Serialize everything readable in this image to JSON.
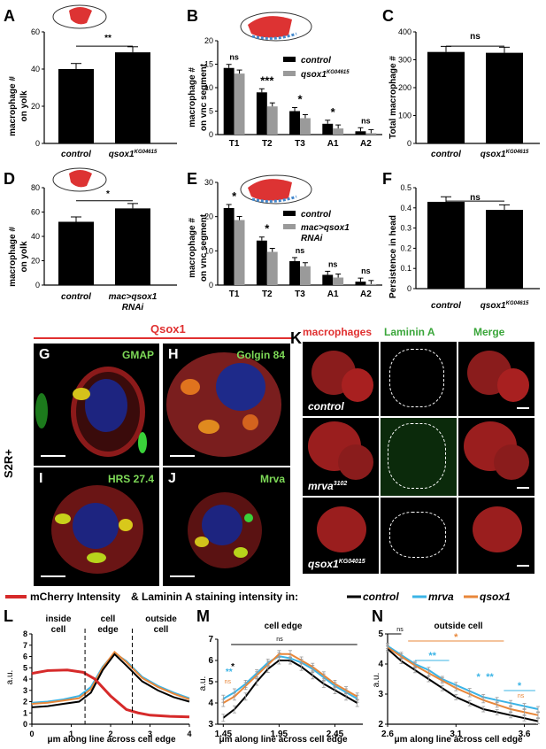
{
  "panels": {
    "A": {
      "label": "A",
      "ylabel1": "macrophage #",
      "ylabel2": "on yolk",
      "sig": "**"
    },
    "B": {
      "label": "B",
      "ylabel1": "macrophage #",
      "ylabel2": "on vnc segment",
      "sigs": [
        "ns",
        "***",
        "*",
        "*",
        "ns"
      ]
    },
    "C": {
      "label": "C",
      "ylabel": "Total macrophage #",
      "sig": "ns"
    },
    "D": {
      "label": "D",
      "ylabel1": "macrophage #",
      "ylabel2": "on yolk",
      "sig": "*"
    },
    "E": {
      "label": "E",
      "ylabel1": "macrophage #",
      "ylabel2": "on vnc segment",
      "sigs": [
        "*",
        "*",
        "ns",
        "ns",
        "ns"
      ]
    },
    "F": {
      "label": "F",
      "ylabel": "Persistence in head",
      "sig": "ns"
    },
    "G": {
      "label": "G",
      "stain": "GMAP"
    },
    "H": {
      "label": "H",
      "stain": "Golgin 84"
    },
    "I": {
      "label": "I",
      "stain": "HRS 27.4"
    },
    "J": {
      "label": "J",
      "stain": "Mrva"
    },
    "K": {
      "label": "K",
      "col1": "macrophages",
      "col2": "Laminin A",
      "col3": "Merge",
      "row1": "control",
      "row2": "mrva",
      "row2sup": "3102",
      "row3": "qsox1",
      "row3sup": "KG04015"
    },
    "L": {
      "label": "L",
      "xlabel": "μm along line across cell edge",
      "ylabel": "a.u.",
      "region1": "inside",
      "region1b": "cell",
      "region2": "cell",
      "region2b": "edge",
      "region3": "outside",
      "region3b": "cell"
    },
    "M": {
      "label": "M",
      "title": "cell edge",
      "xlabel": "μm along line across cell edge",
      "ylabel": "a.u.",
      "sig": "ns"
    },
    "N": {
      "label": "N",
      "title": "outside cell",
      "xlabel": "μm along line across cell edge",
      "ylabel": "a.u.",
      "sig": "ns"
    }
  },
  "labels": {
    "control": "control",
    "qsox": "qsox1",
    "qsox_sup": "KG04615",
    "mac": "mac>qsox1",
    "rnai": "RNAi",
    "qsox1_header": "Qsox1",
    "s2r": "S2R+",
    "legend_mcherry": "mCherry Intensity",
    "legend_amp": "& Laminin A staining intensity in:",
    "legend_control": "control",
    "legend_mrva": "mrva",
    "legend_qsox1": "qsox1"
  },
  "colors": {
    "control": "#000000",
    "mrva": "#3bb4e6",
    "qsox1": "#e8873a",
    "mcherry": "#d62a2a",
    "gray": "#9a9a9a"
  },
  "chart_data": [
    {
      "type": "bar",
      "panel": "A",
      "categories": [
        "control",
        "qsox1 KG04615"
      ],
      "values": [
        40,
        49
      ],
      "ylim": [
        0,
        60
      ]
    },
    {
      "type": "bar",
      "panel": "B",
      "categories": [
        "T1",
        "T2",
        "T3",
        "A1",
        "A2"
      ],
      "series": [
        {
          "name": "control",
          "values": [
            14.2,
            9,
            5,
            2.3,
            0.7
          ]
        },
        {
          "name": "qsox1 KG04615",
          "values": [
            13,
            6,
            3.5,
            1.3,
            0.3
          ]
        }
      ],
      "ylim": [
        0,
        20
      ]
    },
    {
      "type": "bar",
      "panel": "C",
      "categories": [
        "control",
        "qsox1 KG04615"
      ],
      "values": [
        328,
        325
      ],
      "ylim": [
        0,
        400
      ]
    },
    {
      "type": "bar",
      "panel": "D",
      "categories": [
        "control",
        "mac>qsox1 RNAi"
      ],
      "values": [
        52,
        63
      ],
      "ylim": [
        0,
        80
      ]
    },
    {
      "type": "bar",
      "panel": "E",
      "categories": [
        "T1",
        "T2",
        "T3",
        "A1",
        "A2"
      ],
      "series": [
        {
          "name": "control",
          "values": [
            22.5,
            13,
            7,
            3,
            1
          ]
        },
        {
          "name": "mac>qsox1 RNAi",
          "values": [
            19,
            9.7,
            5.5,
            2.2,
            0.3
          ]
        }
      ],
      "ylim": [
        0,
        30
      ]
    },
    {
      "type": "bar",
      "panel": "F",
      "categories": [
        "control",
        "qsox1 KG04615"
      ],
      "values": [
        0.43,
        0.39
      ],
      "ylim": [
        0,
        0.5
      ]
    },
    {
      "type": "line",
      "panel": "L",
      "xlim": [
        0,
        4
      ],
      "ylim": [
        0,
        8
      ],
      "series": [
        {
          "name": "mCherry",
          "x": [
            0,
            0.4,
            0.9,
            1.3,
            1.6,
            2.0,
            2.4,
            2.7,
            3.0,
            3.5,
            4.0
          ],
          "y": [
            4.5,
            4.75,
            4.8,
            4.6,
            4.0,
            2.5,
            1.3,
            1.0,
            0.8,
            0.7,
            0.65
          ]
        },
        {
          "name": "control",
          "x": [
            0,
            0.4,
            0.8,
            1.2,
            1.5,
            1.8,
            2.1,
            2.4,
            2.8,
            3.2,
            3.6,
            4.0
          ],
          "y": [
            1.5,
            1.6,
            1.8,
            2.0,
            2.8,
            4.8,
            6.2,
            5.2,
            3.8,
            3.0,
            2.4,
            2.0
          ]
        },
        {
          "name": "mrva",
          "x": [
            0,
            0.4,
            0.8,
            1.2,
            1.5,
            1.8,
            2.1,
            2.4,
            2.8,
            3.2,
            3.6,
            4.0
          ],
          "y": [
            1.9,
            2.0,
            2.2,
            2.5,
            3.3,
            5.1,
            6.3,
            5.6,
            4.2,
            3.4,
            2.8,
            2.3
          ]
        },
        {
          "name": "qsox1",
          "x": [
            0,
            0.4,
            0.8,
            1.2,
            1.5,
            1.8,
            2.1,
            2.4,
            2.8,
            3.2,
            3.6,
            4.0
          ],
          "y": [
            1.8,
            1.9,
            2.1,
            2.3,
            3.1,
            5.0,
            6.4,
            5.5,
            4.1,
            3.3,
            2.7,
            2.2
          ]
        }
      ]
    },
    {
      "type": "line",
      "panel": "M",
      "xlim": [
        1.4,
        2.7
      ],
      "ylim": [
        3,
        7
      ],
      "series": [
        {
          "name": "control",
          "x": [
            1.45,
            1.55,
            1.65,
            1.75,
            1.85,
            1.95,
            2.05,
            2.15,
            2.25,
            2.35,
            2.45,
            2.55,
            2.65
          ],
          "y": [
            3.3,
            3.7,
            4.3,
            5.0,
            5.6,
            6.0,
            6.0,
            5.7,
            5.3,
            4.9,
            4.6,
            4.3,
            4.0
          ]
        },
        {
          "name": "mrva",
          "x": [
            1.45,
            1.55,
            1.65,
            1.75,
            1.85,
            1.95,
            2.05,
            2.15,
            2.25,
            2.35,
            2.45,
            2.55,
            2.65
          ],
          "y": [
            4.2,
            4.5,
            4.9,
            5.4,
            5.9,
            6.2,
            6.1,
            5.9,
            5.6,
            5.2,
            4.8,
            4.5,
            4.2
          ]
        },
        {
          "name": "qsox1",
          "x": [
            1.45,
            1.55,
            1.65,
            1.75,
            1.85,
            1.95,
            2.05,
            2.15,
            2.25,
            2.35,
            2.45,
            2.55,
            2.65
          ],
          "y": [
            4.0,
            4.3,
            4.8,
            5.3,
            5.8,
            6.3,
            6.3,
            6.0,
            5.7,
            5.3,
            4.9,
            4.6,
            4.3
          ]
        }
      ]
    },
    {
      "type": "line",
      "panel": "N",
      "xlim": [
        2.6,
        3.7
      ],
      "ylim": [
        2,
        5
      ],
      "series": [
        {
          "name": "control",
          "x": [
            2.6,
            2.7,
            2.8,
            2.9,
            3.0,
            3.1,
            3.2,
            3.3,
            3.4,
            3.5,
            3.6,
            3.7
          ],
          "y": [
            4.5,
            4.1,
            3.8,
            3.5,
            3.2,
            2.9,
            2.7,
            2.5,
            2.4,
            2.3,
            2.2,
            2.1
          ]
        },
        {
          "name": "mrva",
          "x": [
            2.6,
            2.7,
            2.8,
            2.9,
            3.0,
            3.1,
            3.2,
            3.3,
            3.4,
            3.5,
            3.6,
            3.7
          ],
          "y": [
            4.6,
            4.3,
            4.0,
            3.8,
            3.5,
            3.3,
            3.1,
            2.9,
            2.8,
            2.7,
            2.6,
            2.5
          ]
        },
        {
          "name": "qsox1",
          "x": [
            2.6,
            2.7,
            2.8,
            2.9,
            3.0,
            3.1,
            3.2,
            3.3,
            3.4,
            3.5,
            3.6,
            3.7
          ],
          "y": [
            4.55,
            4.25,
            3.95,
            3.7,
            3.45,
            3.2,
            3.0,
            2.8,
            2.65,
            2.5,
            2.4,
            2.3
          ]
        }
      ]
    }
  ]
}
